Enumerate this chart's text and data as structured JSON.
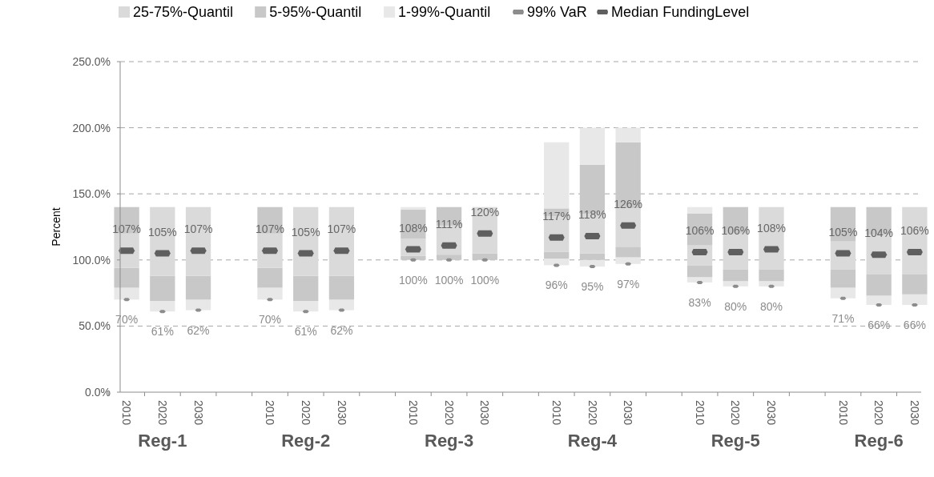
{
  "chart_data": {
    "type": "bar",
    "ylabel": "Percent",
    "categories": [
      "2010",
      "2020",
      "2030",
      null,
      "2010",
      "2020",
      "2030",
      null,
      "2010",
      "2020",
      "2030",
      null,
      "2010",
      "2020",
      "2030",
      null,
      "2010",
      "2020",
      "2030",
      null,
      "2010",
      "2020",
      "2030"
    ],
    "annotations": [
      "Reg-1",
      "Reg-2",
      "Reg-3",
      "Reg-4",
      "Reg-5",
      "Reg-6"
    ],
    "series": [
      {
        "color": "#e8e8e8",
        "base": [
          70,
          61,
          62,
          null,
          70,
          61,
          62,
          null,
          null,
          null,
          null,
          null,
          96,
          95,
          97,
          null,
          83,
          80,
          80,
          null,
          71,
          66,
          66
        ],
        "values": [
          9,
          8,
          8,
          null,
          9,
          8,
          8,
          null,
          null,
          null,
          null,
          null,
          5,
          5,
          5,
          null,
          4,
          4,
          4,
          null,
          8,
          7,
          8
        ]
      },
      {
        "color": "#c8c8c8",
        "base": [
          79,
          69,
          70,
          null,
          79,
          69,
          70,
          null,
          100,
          100,
          100,
          null,
          101,
          100,
          102,
          null,
          87,
          84,
          84,
          null,
          79,
          73,
          74
        ],
        "values": [
          15,
          19,
          18,
          null,
          15,
          19,
          18,
          null,
          3,
          4,
          5,
          null,
          5,
          5,
          8,
          null,
          9,
          9,
          9,
          null,
          14,
          16,
          15
        ]
      },
      {
        "name": "25-75%-Quantil",
        "color": "#dadada",
        "base": [
          94,
          88,
          88,
          null,
          94,
          88,
          88,
          null,
          103,
          104,
          105,
          null,
          106,
          105,
          110,
          null,
          96,
          93,
          93,
          null,
          93,
          89,
          89
        ],
        "values": [
          26,
          52,
          52,
          null,
          26,
          52,
          52,
          null,
          13,
          22,
          35,
          null,
          27,
          30,
          29,
          null,
          15,
          27,
          47,
          null,
          21,
          30,
          51
        ]
      },
      {
        "name": "5-95%-Quantil",
        "color": "#c8c8c8",
        "base": [
          120,
          null,
          null,
          null,
          120,
          null,
          null,
          null,
          116,
          126,
          null,
          null,
          133,
          135,
          139,
          null,
          111,
          120,
          null,
          null,
          114,
          119,
          null
        ],
        "values": [
          20,
          null,
          null,
          null,
          20,
          null,
          null,
          null,
          22,
          14,
          null,
          null,
          6,
          37,
          50,
          null,
          24,
          20,
          null,
          null,
          26,
          21,
          null
        ]
      },
      {
        "name": "1-99%-Quantil",
        "color": "#e8e8e8",
        "base": [
          null,
          null,
          null,
          null,
          null,
          null,
          null,
          null,
          138,
          null,
          null,
          null,
          139,
          172,
          189,
          null,
          135,
          null,
          null,
          null,
          null,
          null,
          null
        ],
        "values": [
          null,
          null,
          null,
          null,
          null,
          null,
          null,
          null,
          2,
          null,
          null,
          null,
          50,
          28,
          11,
          null,
          5,
          null,
          null,
          null,
          null,
          null,
          null
        ]
      },
      {
        "name": "99% VaR",
        "type": "scatter",
        "color": "#8c8c8c",
        "values": [
          70,
          61,
          62,
          null,
          70,
          61,
          62,
          null,
          100,
          100,
          100,
          null,
          96,
          95,
          97,
          null,
          83,
          80,
          80,
          null,
          71,
          66,
          66
        ],
        "value_labels": [
          "70%",
          "61%",
          "62%",
          null,
          "70%",
          "61%",
          "62%",
          null,
          "100%",
          "100%",
          "100%",
          null,
          "96%",
          "95%",
          "97%",
          null,
          "83%",
          "80%",
          "80%",
          null,
          "71%",
          "66%",
          "66%"
        ]
      },
      {
        "name": "Median FundingLevel",
        "type": "scatter",
        "color": "#5f5f5f",
        "values": [
          107,
          105,
          107,
          null,
          107,
          105,
          107,
          null,
          108,
          111,
          120,
          null,
          117,
          118,
          126,
          null,
          106,
          106,
          108,
          null,
          105,
          104,
          106
        ],
        "value_labels": [
          "107%",
          "105%",
          "107%",
          null,
          "107%",
          "105%",
          "107%",
          null,
          "108%",
          "111%",
          "120%",
          null,
          "117%",
          "118%",
          "126%",
          null,
          "106%",
          "106%",
          "108%",
          null,
          "105%",
          "104%",
          "106%"
        ]
      }
    ],
    "ylim": [
      0,
      250
    ],
    "yticks": [
      {
        "value": 0,
        "label": "0.0%"
      },
      {
        "value": 50,
        "label": "50.0%"
      },
      {
        "value": 100,
        "label": "100.0%"
      },
      {
        "value": 150,
        "label": "150.0%"
      },
      {
        "value": 200,
        "label": "200.0%"
      },
      {
        "value": 250,
        "label": "250.0%"
      }
    ],
    "grid": "y",
    "legend": "top"
  }
}
